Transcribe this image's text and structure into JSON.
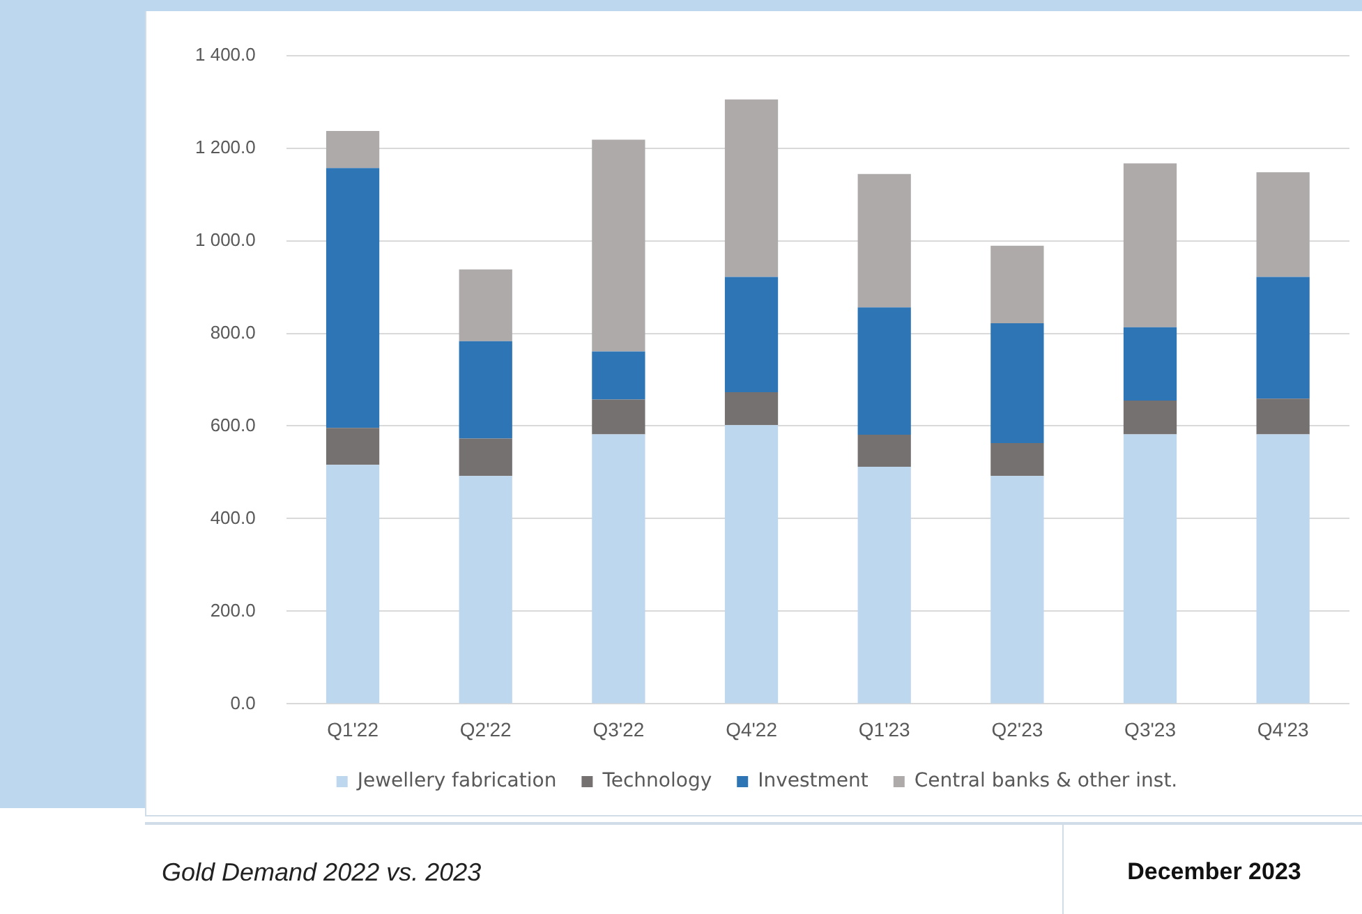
{
  "chart_data": {
    "type": "bar",
    "title": "Gold Demand 2022 vs. 2023",
    "subtitle": "December 2023",
    "categories": [
      "Q1'22",
      "Q2'22",
      "Q3'22",
      "Q4'22",
      "Q1'23",
      "Q2'23",
      "Q3'23",
      "Q4'23"
    ],
    "stacked": true,
    "series": [
      {
        "name": "Jewellery fabrication",
        "color": "#bdd7ee",
        "values": [
          516,
          492,
          582,
          602,
          512,
          492,
          582,
          582
        ]
      },
      {
        "name": "Technology",
        "color": "#757171",
        "values": [
          80,
          81,
          75,
          71,
          69,
          71,
          73,
          77
        ]
      },
      {
        "name": "Investment",
        "color": "#2e75b6",
        "values": [
          561,
          210,
          104,
          249,
          275,
          259,
          158,
          263
        ]
      },
      {
        "name": "Central banks & other inst.",
        "color": "#aeaaaa",
        "values": [
          80,
          155,
          457,
          383,
          288,
          167,
          354,
          226
        ]
      }
    ],
    "ylim": [
      0,
      1400
    ],
    "yticks": [
      {
        "value": 0,
        "label": "0.0"
      },
      {
        "value": 200,
        "label": "200.0"
      },
      {
        "value": 400,
        "label": "400.0"
      },
      {
        "value": 600,
        "label": "600.0"
      },
      {
        "value": 800,
        "label": "800.0"
      },
      {
        "value": 1000,
        "label": "1 000.0"
      },
      {
        "value": 1200,
        "label": "1 200.0"
      },
      {
        "value": 1400,
        "label": "1 400.0"
      }
    ],
    "grid": "y",
    "legend": "bottom"
  }
}
